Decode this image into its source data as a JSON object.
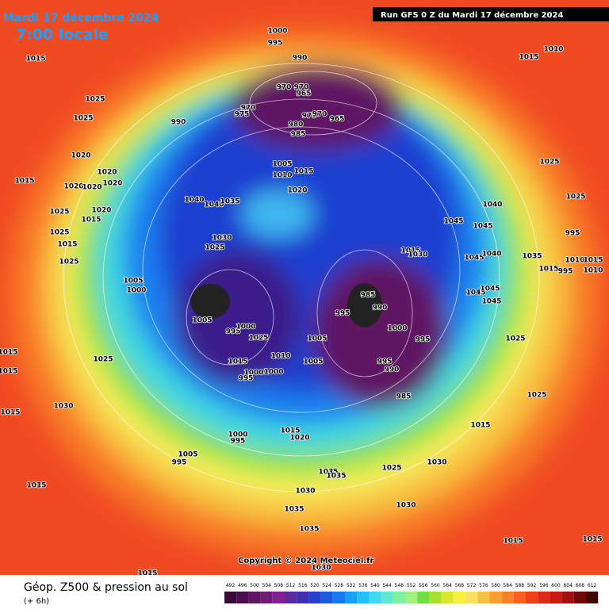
{
  "header": {
    "date": "Mardi 17 décembre 2024",
    "time": "7:00 locale",
    "run": "Run GFS 0 Z du Mardi 17 décembre 2024"
  },
  "copyright": "Copyright © 2024 Meteociel.fr",
  "footer": {
    "title": "Géop. Z500 & pression au sol",
    "subtitle": "(+ 6h)"
  },
  "pressure_labels": [
    1015,
    1025,
    1025,
    990,
    1000,
    995,
    990,
    970,
    970,
    965,
    970,
    975,
    975,
    970,
    965,
    980,
    985,
    1015,
    1010,
    1020,
    1020,
    1020,
    1015,
    1020,
    1020,
    1005,
    1015,
    1010,
    1020,
    1040,
    1040,
    1035,
    1025,
    1025,
    1045,
    1040,
    1045,
    995,
    1025,
    1015,
    1020,
    1025,
    1015,
    1025,
    1030,
    1025,
    1015,
    1030,
    1045,
    1040,
    1035,
    1015,
    1010,
    1015,
    995,
    1010,
    1005,
    1000,
    1045,
    1045,
    1045,
    985,
    990,
    995,
    1005,
    995,
    1000,
    1025,
    1005,
    1000,
    995,
    1010,
    1005,
    1015,
    1000,
    1000,
    995,
    995,
    990,
    985,
    1015,
    1015,
    1025,
    1025,
    1025,
    1030,
    1015,
    1015,
    1015,
    1020,
    1000,
    995,
    1005,
    995,
    1030,
    1025,
    1035,
    1035,
    1015,
    1030,
    1030,
    1035,
    1035,
    1015,
    1015,
    1030,
    1015
  ],
  "colorbar": {
    "values": [
      492,
      496,
      500,
      504,
      508,
      512,
      516,
      520,
      524,
      528,
      532,
      536,
      540,
      544,
      548,
      552,
      556,
      560,
      564,
      568,
      572,
      576,
      580,
      584,
      588,
      592,
      596,
      600,
      604,
      608,
      612
    ],
    "colors": [
      "#3a0a3a",
      "#4b0f4f",
      "#5e1464",
      "#701a78",
      "#80208a",
      "#5a2a9c",
      "#3c2fb0",
      "#2440c8",
      "#1e5ae0",
      "#1a78f0",
      "#16a0f8",
      "#20c0f8",
      "#40d8f0",
      "#60e8d0",
      "#80f0a0",
      "#a0f080",
      "#70e040",
      "#a8e030",
      "#d8e828",
      "#f8f040",
      "#f8e060",
      "#f8c040",
      "#f8a030",
      "#f88028",
      "#f86020",
      "#f04018",
      "#e02818",
      "#c81810",
      "#a01010",
      "#700808",
      "#400404"
    ]
  }
}
